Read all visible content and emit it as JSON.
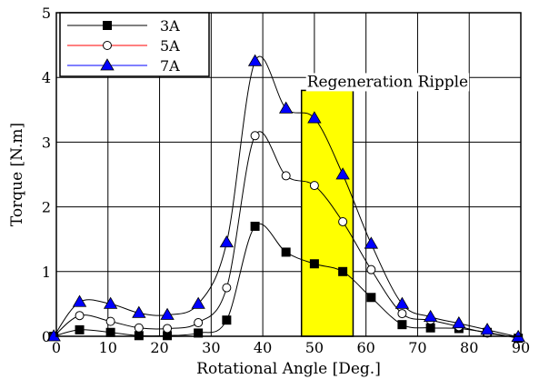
{
  "chart_data": {
    "type": "line",
    "xlabel": "Rotational Angle [Deg.]",
    "ylabel": "Torque [N.m]",
    "xlim": [
      0,
      90
    ],
    "ylim": [
      0,
      5
    ],
    "x_ticks": [
      0,
      10,
      20,
      30,
      40,
      50,
      60,
      70,
      80,
      90
    ],
    "y_ticks": [
      0,
      1,
      2,
      3,
      4,
      5
    ],
    "grid": true,
    "legend_position": "top-left",
    "annotation": {
      "text": "Regeneration Ripple",
      "x_start": 47.5,
      "x_end": 57.5,
      "y_start": 0,
      "y_end": 3.8,
      "color": "#ffff00"
    },
    "series": [
      {
        "name": "3A",
        "marker": "square",
        "color": "#000000",
        "x": [
          -0.5,
          4.5,
          10.5,
          16,
          21.5,
          27.5,
          33,
          38.5,
          44.5,
          50,
          55.5,
          61,
          67,
          72.5,
          78,
          83.5,
          89.5
        ],
        "y": [
          0.0,
          0.1,
          0.06,
          0.01,
          0.01,
          0.05,
          0.25,
          1.7,
          1.3,
          1.12,
          1.0,
          0.6,
          0.18,
          0.13,
          0.12,
          0.06,
          -0.03
        ]
      },
      {
        "name": "5A",
        "marker": "open-circle",
        "color": "#ff0000",
        "x": [
          -0.5,
          4.5,
          10.5,
          16,
          21.5,
          27.5,
          33,
          38.5,
          44.5,
          50,
          55.5,
          61,
          67,
          72.5,
          78,
          83.5,
          89.5
        ],
        "y": [
          0.0,
          0.32,
          0.23,
          0.13,
          0.12,
          0.21,
          0.75,
          3.1,
          2.48,
          2.33,
          1.77,
          1.03,
          0.35,
          0.25,
          0.15,
          0.05,
          -0.02
        ]
      },
      {
        "name": "7A",
        "marker": "triangle",
        "color": "#0000ff",
        "x": [
          -0.5,
          4.5,
          10.5,
          16,
          21.5,
          27.5,
          33,
          38.5,
          44.5,
          50,
          55.5,
          61,
          67,
          72.5,
          78,
          83.5,
          89.5
        ],
        "y": [
          0.0,
          0.53,
          0.5,
          0.36,
          0.33,
          0.5,
          1.45,
          4.25,
          3.52,
          3.37,
          2.5,
          1.43,
          0.5,
          0.3,
          0.2,
          0.1,
          -0.01
        ]
      }
    ]
  }
}
